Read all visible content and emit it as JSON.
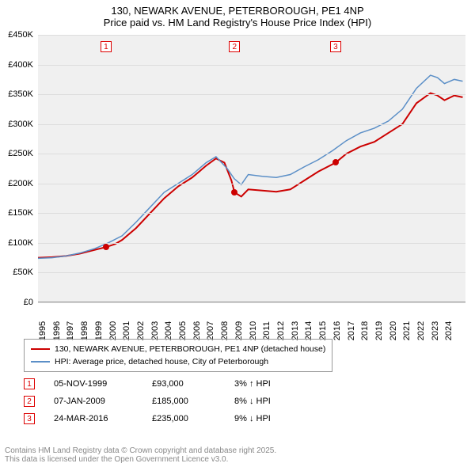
{
  "title": {
    "line1": "130, NEWARK AVENUE, PETERBOROUGH, PE1 4NP",
    "line2": "Price paid vs. HM Land Registry's House Price Index (HPI)"
  },
  "chart": {
    "type": "line",
    "background_color": "#f0f0f0",
    "grid_color": "#dddddd",
    "x": {
      "min": 1995,
      "max": 2025.5,
      "ticks": [
        1995,
        1996,
        1997,
        1998,
        1999,
        2000,
        2001,
        2002,
        2003,
        2004,
        2005,
        2006,
        2007,
        2008,
        2009,
        2010,
        2011,
        2012,
        2013,
        2014,
        2015,
        2016,
        2017,
        2018,
        2019,
        2020,
        2021,
        2022,
        2023,
        2024
      ]
    },
    "y": {
      "min": 0,
      "max": 450000,
      "tick_step": 50000,
      "labels": [
        "£0",
        "£50K",
        "£100K",
        "£150K",
        "£200K",
        "£250K",
        "£300K",
        "£350K",
        "£400K",
        "£450K"
      ]
    },
    "series": [
      {
        "name": "property",
        "label": "130, NEWARK AVENUE, PETERBOROUGH, PE1 4NP (detached house)",
        "color": "#cc0000",
        "width": 2,
        "points": [
          [
            1995.0,
            75000
          ],
          [
            1996.0,
            76000
          ],
          [
            1997.0,
            78000
          ],
          [
            1998.0,
            82000
          ],
          [
            1999.0,
            88000
          ],
          [
            1999.85,
            93000
          ],
          [
            2000.5,
            98000
          ],
          [
            2001.0,
            105000
          ],
          [
            2002.0,
            125000
          ],
          [
            2003.0,
            150000
          ],
          [
            2004.0,
            175000
          ],
          [
            2005.0,
            195000
          ],
          [
            2006.0,
            210000
          ],
          [
            2007.0,
            230000
          ],
          [
            2007.7,
            242000
          ],
          [
            2008.3,
            235000
          ],
          [
            2008.8,
            205000
          ],
          [
            2009.02,
            185000
          ],
          [
            2009.5,
            178000
          ],
          [
            2010.0,
            190000
          ],
          [
            2011.0,
            188000
          ],
          [
            2012.0,
            186000
          ],
          [
            2013.0,
            190000
          ],
          [
            2014.0,
            205000
          ],
          [
            2015.0,
            220000
          ],
          [
            2016.23,
            235000
          ],
          [
            2017.0,
            250000
          ],
          [
            2018.0,
            262000
          ],
          [
            2019.0,
            270000
          ],
          [
            2020.0,
            285000
          ],
          [
            2021.0,
            300000
          ],
          [
            2022.0,
            335000
          ],
          [
            2023.0,
            352000
          ],
          [
            2023.5,
            348000
          ],
          [
            2024.0,
            340000
          ],
          [
            2024.7,
            348000
          ],
          [
            2025.3,
            345000
          ]
        ]
      },
      {
        "name": "hpi",
        "label": "HPI: Average price, detached house, City of Peterborough",
        "color": "#5b8fc7",
        "width": 1.5,
        "points": [
          [
            1995.0,
            74000
          ],
          [
            1996.0,
            75000
          ],
          [
            1997.0,
            78000
          ],
          [
            1998.0,
            83000
          ],
          [
            1999.0,
            90000
          ],
          [
            2000.0,
            100000
          ],
          [
            2001.0,
            112000
          ],
          [
            2002.0,
            135000
          ],
          [
            2003.0,
            160000
          ],
          [
            2004.0,
            185000
          ],
          [
            2005.0,
            200000
          ],
          [
            2006.0,
            215000
          ],
          [
            2007.0,
            235000
          ],
          [
            2007.7,
            245000
          ],
          [
            2008.5,
            225000
          ],
          [
            2009.0,
            208000
          ],
          [
            2009.5,
            198000
          ],
          [
            2010.0,
            215000
          ],
          [
            2011.0,
            212000
          ],
          [
            2012.0,
            210000
          ],
          [
            2013.0,
            215000
          ],
          [
            2014.0,
            228000
          ],
          [
            2015.0,
            240000
          ],
          [
            2016.0,
            255000
          ],
          [
            2017.0,
            272000
          ],
          [
            2018.0,
            285000
          ],
          [
            2019.0,
            293000
          ],
          [
            2020.0,
            305000
          ],
          [
            2021.0,
            325000
          ],
          [
            2022.0,
            360000
          ],
          [
            2023.0,
            382000
          ],
          [
            2023.5,
            378000
          ],
          [
            2024.0,
            368000
          ],
          [
            2024.7,
            375000
          ],
          [
            2025.3,
            372000
          ]
        ]
      }
    ],
    "markers": [
      {
        "n": "1",
        "x": 1999.85,
        "y": 93000
      },
      {
        "n": "2",
        "x": 2009.02,
        "y": 185000
      },
      {
        "n": "3",
        "x": 2016.23,
        "y": 235000
      }
    ]
  },
  "legend": {
    "items": [
      {
        "key": "property"
      },
      {
        "key": "hpi"
      }
    ]
  },
  "events": [
    {
      "n": "1",
      "date": "05-NOV-1999",
      "price": "£93,000",
      "delta": "3% ↑ HPI"
    },
    {
      "n": "2",
      "date": "07-JAN-2009",
      "price": "£185,000",
      "delta": "8% ↓ HPI"
    },
    {
      "n": "3",
      "date": "24-MAR-2016",
      "price": "£235,000",
      "delta": "9% ↓ HPI"
    }
  ],
  "footer": {
    "line1": "Contains HM Land Registry data © Crown copyright and database right 2025.",
    "line2": "This data is licensed under the Open Government Licence v3.0."
  }
}
